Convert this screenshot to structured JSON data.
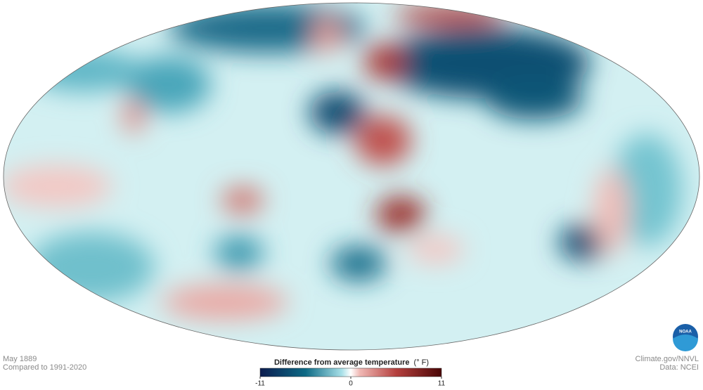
{
  "caption": {
    "date": "May 1889",
    "baseline": "Compared to 1991-2020"
  },
  "credits": {
    "source": "Climate.gov/NNVL",
    "data": "Data: NCEI",
    "logo": "NOAA"
  },
  "colorbar": {
    "title": "Difference from average temperature",
    "unit": "(° F)",
    "lim": [
      -11,
      11
    ],
    "ticks": [
      -11,
      0,
      11
    ]
  }
}
